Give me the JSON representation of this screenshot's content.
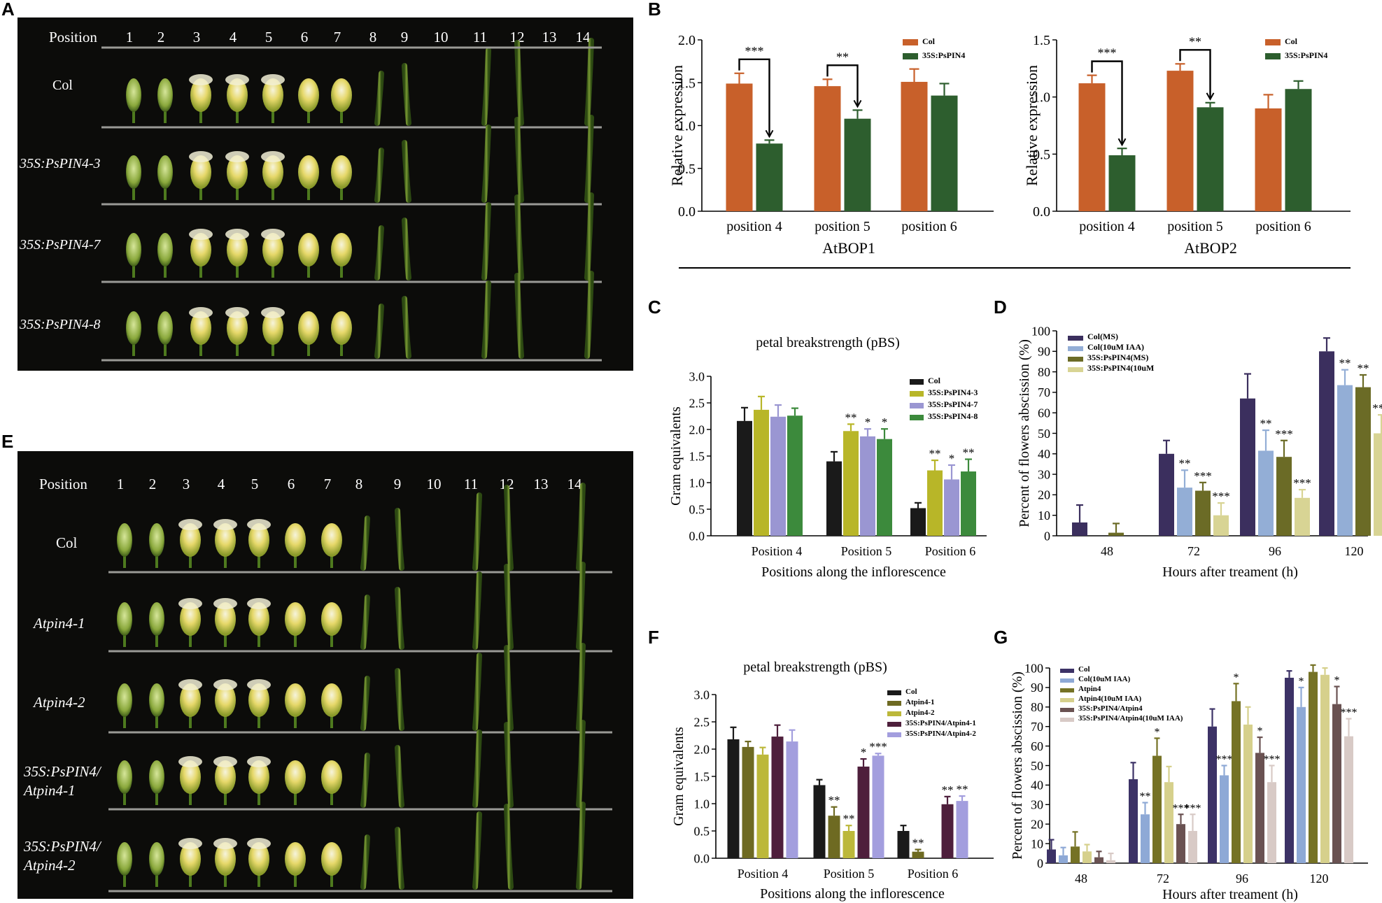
{
  "panel_labels": {
    "a": "A",
    "b": "B",
    "c": "C",
    "d": "D",
    "e": "E",
    "f": "F",
    "g": "G"
  },
  "photo_a": {
    "header": "Position",
    "positions": [
      "1",
      "2",
      "3",
      "4",
      "5",
      "6",
      "7",
      "8",
      "9",
      "10",
      "11",
      "12",
      "13",
      "14"
    ],
    "rows": [
      "Col",
      "35S:PsPIN4-3",
      "35S:PsPIN4-7",
      "35S:PsPIN4-8"
    ]
  },
  "photo_e": {
    "header": "Position",
    "positions": [
      "1",
      "2",
      "3",
      "4",
      "5",
      "6",
      "7",
      "8",
      "9",
      "10",
      "11",
      "12",
      "13",
      "14"
    ],
    "rows": [
      [
        "Col"
      ],
      [
        "Atpin4-1"
      ],
      [
        "Atpin4-2"
      ],
      [
        "35S:PsPIN4/",
        "Atpin4-1"
      ],
      [
        "35S:PsPIN4/",
        "Atpin4-2"
      ]
    ]
  },
  "colors": {
    "col_orange": "#c8602a",
    "pin4_green": "#2d5e2e",
    "c_black": "#1a1a1a",
    "c_yellow": "#b8b628",
    "c_lavender": "#9a96d2",
    "c_green": "#3c8a3c",
    "d_navy": "#3b2f5e",
    "d_lightblue": "#93aed6",
    "d_olive": "#6b6b26",
    "d_cream": "#d8d494",
    "f_black": "#1a1a1a",
    "f_olive": "#6e6a22",
    "f_yellow": "#bcb83a",
    "f_maroon": "#4e1f3c",
    "f_lavender": "#a39ede",
    "g_navy": "#3c3266",
    "g_blue": "#8ea9d6",
    "g_olive": "#757225",
    "g_cream": "#d6d08c",
    "g_brown": "#6a5252",
    "g_pink": "#d8cac6"
  },
  "chart_data": [
    {
      "id": "B1",
      "type": "bar",
      "title": "",
      "xlabel": "AtBOP1",
      "ylabel": "Relative expression",
      "categories": [
        "position 4",
        "position 5",
        "position 6"
      ],
      "ylim": [
        0,
        2.0
      ],
      "yticks": [
        "0.0",
        "0.5",
        "1.0",
        "1.5",
        "2.0"
      ],
      "series": [
        {
          "name": "Col",
          "values": [
            1.49,
            1.46,
            1.51
          ],
          "err": [
            0.12,
            0.08,
            0.15
          ]
        },
        {
          "name": "35S:PsPIN4",
          "values": [
            0.79,
            1.08,
            1.35
          ],
          "err": [
            0.04,
            0.1,
            0.14
          ]
        }
      ],
      "significance": [
        {
          "category": 0,
          "label": "***"
        },
        {
          "category": 1,
          "label": "**"
        }
      ]
    },
    {
      "id": "B2",
      "type": "bar",
      "title": "",
      "xlabel": "AtBOP2",
      "ylabel": "Relative expression",
      "categories": [
        "position 4",
        "position 5",
        "position 6"
      ],
      "ylim": [
        0,
        1.5
      ],
      "yticks": [
        "0.0",
        "0.5",
        "1.0",
        "1.5"
      ],
      "series": [
        {
          "name": "Col",
          "values": [
            1.12,
            1.23,
            0.9
          ],
          "err": [
            0.07,
            0.06,
            0.12
          ]
        },
        {
          "name": "35S:PsPIN4",
          "values": [
            0.49,
            0.91,
            1.07
          ],
          "err": [
            0.06,
            0.04,
            0.07
          ]
        }
      ],
      "significance": [
        {
          "category": 0,
          "label": "***"
        },
        {
          "category": 1,
          "label": "**"
        }
      ]
    },
    {
      "id": "C",
      "type": "bar",
      "title": "petal breakstrength (pBS)",
      "xlabel": "Positions along the inflorescence",
      "ylabel": "Gram equivalents",
      "categories": [
        "Position 4",
        "Position 5",
        "Position 6"
      ],
      "ylim": [
        0,
        3.0
      ],
      "yticks": [
        "0.0",
        "0.5",
        "1.0",
        "1.5",
        "2.0",
        "2.5",
        "3.0"
      ],
      "series": [
        {
          "name": "Col",
          "values": [
            2.16,
            1.4,
            0.52
          ],
          "err": [
            0.25,
            0.18,
            0.1
          ]
        },
        {
          "name": "35S:PsPIN4-3",
          "values": [
            2.37,
            1.97,
            1.23
          ],
          "err": [
            0.25,
            0.13,
            0.19
          ]
        },
        {
          "name": "35S:PsPIN4-7",
          "values": [
            2.24,
            1.87,
            1.06
          ],
          "err": [
            0.22,
            0.14,
            0.27
          ]
        },
        {
          "name": "35S:PsPIN4-8",
          "values": [
            2.26,
            1.82,
            1.21
          ],
          "err": [
            0.14,
            0.19,
            0.23
          ]
        }
      ],
      "significance_labels": [
        [
          "",
          "",
          "",
          ""
        ],
        [
          "",
          "**",
          "*",
          "*"
        ],
        [
          "",
          "**",
          "*",
          "**"
        ]
      ]
    },
    {
      "id": "D",
      "type": "bar",
      "title": "",
      "xlabel": "Hours after treament (h)",
      "ylabel": "Percent of flowers abscission (%)",
      "categories": [
        "48",
        "72",
        "96",
        "120"
      ],
      "ylim": [
        0,
        100
      ],
      "yticks": [
        "0",
        "10",
        "20",
        "30",
        "40",
        "50",
        "60",
        "70",
        "80",
        "90",
        "100"
      ],
      "series": [
        {
          "name": "Col(MS)",
          "values": [
            6.5,
            40,
            67,
            90
          ],
          "err": [
            8.5,
            6.5,
            12,
            6.5
          ]
        },
        {
          "name": "Col(10uM IAA)",
          "values": [
            0,
            23.5,
            41.5,
            73.5
          ],
          "err": [
            0,
            8.5,
            10,
            7.5
          ]
        },
        {
          "name": "35S:PsPIN4(MS)",
          "values": [
            1.5,
            22,
            38.5,
            72.5
          ],
          "err": [
            4.5,
            4,
            8,
            6
          ]
        },
        {
          "name": "35S:PsPIN4(10uM",
          "values": [
            0,
            10,
            18.5,
            50
          ],
          "err": [
            0,
            6,
            4,
            9
          ]
        }
      ],
      "significance_labels": [
        [
          "",
          "",
          "",
          ""
        ],
        [
          "",
          "**",
          "***",
          "***"
        ],
        [
          "",
          "**",
          "***",
          "***"
        ],
        [
          "",
          "**",
          "**",
          "***"
        ]
      ]
    },
    {
      "id": "F",
      "type": "bar",
      "title": "petal breakstrength (pBS)",
      "xlabel": "Positions along the inflorescence",
      "ylabel": "Gram equivalents",
      "categories": [
        "Position 4",
        "Position 5",
        "Position 6"
      ],
      "ylim": [
        0,
        3.0
      ],
      "yticks": [
        "0.0",
        "0.5",
        "1.0",
        "1.5",
        "2.0",
        "2.5",
        "3.0"
      ],
      "series": [
        {
          "name": "Col",
          "values": [
            2.18,
            1.34,
            0.5
          ],
          "err": [
            0.22,
            0.1,
            0.1
          ]
        },
        {
          "name": "Atpin4-1",
          "values": [
            2.04,
            0.78,
            0.12
          ],
          "err": [
            0.1,
            0.16,
            0.04
          ]
        },
        {
          "name": "Atpin4-2",
          "values": [
            1.9,
            0.5,
            0
          ],
          "err": [
            0.13,
            0.1,
            0
          ]
        },
        {
          "name": "35S:PsPIN4/Atpin4-1",
          "values": [
            2.23,
            1.68,
            0.99
          ],
          "err": [
            0.21,
            0.14,
            0.14
          ]
        },
        {
          "name": "35S:PsPIN4/Atpin4-2",
          "values": [
            2.14,
            1.88,
            1.05
          ],
          "err": [
            0.21,
            0.04,
            0.09
          ]
        }
      ],
      "significance_labels": [
        [
          "",
          "",
          "",
          "",
          ""
        ],
        [
          "",
          "**",
          "**",
          "*",
          "***"
        ],
        [
          "",
          "**",
          "",
          "**",
          "**"
        ]
      ]
    },
    {
      "id": "G",
      "type": "bar",
      "title": "",
      "xlabel": "Hours after treament (h)",
      "ylabel": "Percent of flowers abscission (%)",
      "categories": [
        "48",
        "72",
        "96",
        "120"
      ],
      "ylim": [
        0,
        100
      ],
      "yticks": [
        "0",
        "10",
        "20",
        "30",
        "40",
        "50",
        "60",
        "70",
        "80",
        "90",
        "100"
      ],
      "series": [
        {
          "name": "Col",
          "values": [
            7,
            43,
            70,
            95
          ],
          "err": [
            5,
            8.5,
            9,
            3.5
          ]
        },
        {
          "name": "Col(10uM IAA)",
          "values": [
            4,
            25,
            45,
            80
          ],
          "err": [
            4,
            6,
            5,
            10
          ]
        },
        {
          "name": "Atpin4",
          "values": [
            8.5,
            55,
            83,
            98
          ],
          "err": [
            7.5,
            9,
            9,
            3.5
          ]
        },
        {
          "name": "Atpin4(10uM IAA)",
          "values": [
            6,
            41.5,
            71,
            96.5
          ],
          "err": [
            3.5,
            8,
            9,
            3.5
          ]
        },
        {
          "name": "35S:PsPIN4/Atpin4",
          "values": [
            3,
            20,
            56.5,
            81.5
          ],
          "err": [
            3,
            5,
            8,
            9
          ]
        },
        {
          "name": "35S:PsPIN4/Atpin4(10uM IAA)",
          "values": [
            1.5,
            16.5,
            41.5,
            65
          ],
          "err": [
            3.5,
            8.5,
            8.5,
            9
          ]
        }
      ],
      "significance_labels": [
        [
          "",
          "",
          "",
          "",
          "",
          ""
        ],
        [
          "",
          "**",
          "*",
          "",
          "***",
          "***"
        ],
        [
          "",
          "***",
          "*",
          "",
          "*",
          "***"
        ],
        [
          "",
          "*",
          "",
          "",
          "*",
          "***"
        ]
      ]
    }
  ]
}
